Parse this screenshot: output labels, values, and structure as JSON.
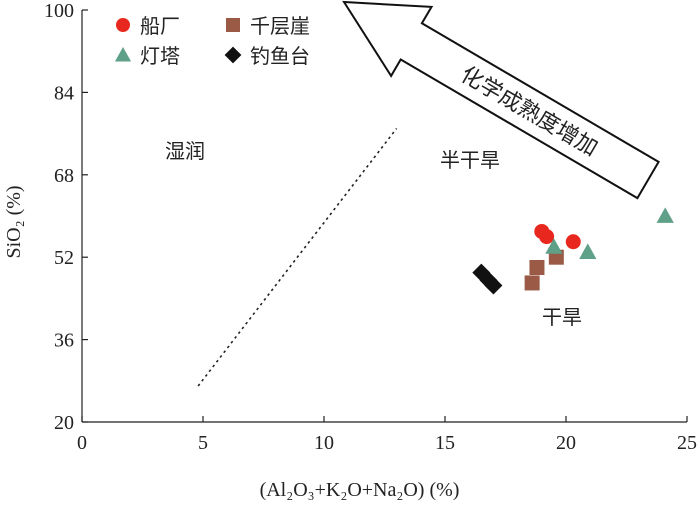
{
  "chart_data": {
    "type": "scatter",
    "xlabel": "(Al₂O₃+K₂O+Na₂O) (%)",
    "ylabel": "SiO₂ (%)",
    "xlim": [
      0,
      25
    ],
    "ylim": [
      20,
      100
    ],
    "x_ticks": [
      "0",
      "5",
      "10",
      "15",
      "20",
      "25"
    ],
    "y_ticks": [
      "20",
      "36",
      "52",
      "68",
      "84",
      "100"
    ],
    "grid": false,
    "legend_position": "top-left",
    "series": [
      {
        "name": "船厂",
        "marker": "circle",
        "color": "#e8281e",
        "points": [
          [
            19.0,
            57.0
          ],
          [
            19.2,
            56.0
          ],
          [
            20.3,
            55.0
          ]
        ]
      },
      {
        "name": "千层崖",
        "marker": "square",
        "color": "#9a5a45",
        "points": [
          [
            18.6,
            47.0
          ],
          [
            18.8,
            50.0
          ],
          [
            19.6,
            52.0
          ]
        ]
      },
      {
        "name": "灯塔",
        "marker": "triangle",
        "color": "#5fa089",
        "points": [
          [
            19.5,
            54.0
          ],
          [
            20.9,
            53.0
          ],
          [
            24.1,
            60.0
          ]
        ]
      },
      {
        "name": "钓鱼台",
        "marker": "diamond",
        "color": "#111111",
        "points": [
          [
            16.5,
            49.0
          ],
          [
            16.8,
            47.5
          ],
          [
            17.0,
            46.5
          ]
        ]
      }
    ],
    "divider_line": [
      [
        4.8,
        27.0
      ],
      [
        13.0,
        77.0
      ]
    ],
    "annotations": {
      "humid": "湿润",
      "semi_arid": "半干旱",
      "arid": "干旱",
      "arrow_label": "化学成熟度增加"
    }
  }
}
